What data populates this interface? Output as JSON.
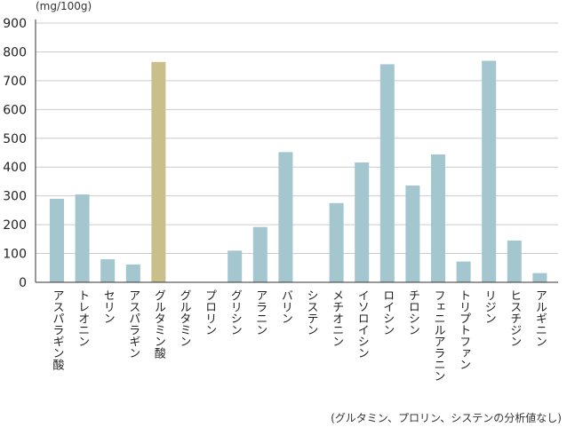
{
  "chart_data": {
    "type": "bar",
    "unit_label": "(mg/100g)",
    "categories": [
      "アスパラギン酸",
      "トレオニン",
      "セリン",
      "アスパラギン",
      "グルタミン酸",
      "グルタミン",
      "プロリン",
      "グリシン",
      "アラニン",
      "バリン",
      "システン",
      "メチオニン",
      "イソロイシン",
      "ロイシン",
      "チロシン",
      "フェニルアラニン",
      "トリプトファン",
      "リジン",
      "ヒスチジン",
      "アルギニン"
    ],
    "values": [
      290,
      305,
      80,
      62,
      765,
      0,
      0,
      110,
      192,
      452,
      0,
      275,
      416,
      757,
      336,
      444,
      72,
      769,
      145,
      32
    ],
    "highlight_index": 4,
    "ylim": [
      0,
      900
    ],
    "yticks": [
      "0",
      "100",
      "200",
      "300",
      "400",
      "500",
      "600",
      "700",
      "800",
      "900"
    ],
    "grid": true,
    "colors": {
      "bar": "#a3c6cf",
      "highlight": "#c8bf8a",
      "grid": "#cccccc",
      "axis": "#333333"
    },
    "footnote": "(グルタミン、プロリン、システンの分析値なし)"
  }
}
